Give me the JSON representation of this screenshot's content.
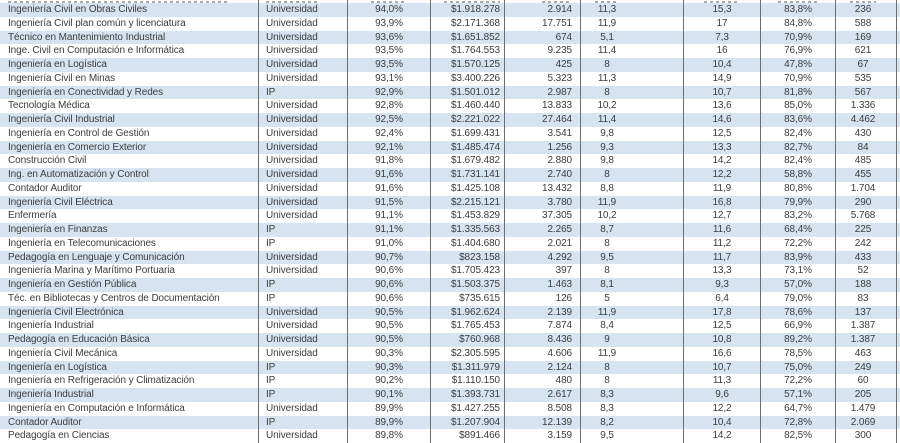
{
  "colors": {
    "row_stripe": "#d6e4f1",
    "grid_border": "#6d6d6d",
    "text": "#3d3d3d",
    "background": "#ffffff"
  },
  "chart_data": {
    "type": "table",
    "title": "",
    "column_headers_visible": false,
    "column_keys": [
      "career",
      "institution",
      "percent_a",
      "income",
      "count_a",
      "value_a",
      "value_b",
      "percent_b",
      "count_b"
    ],
    "rows": [
      [
        "Ingeniería Civil en Obras Civiles",
        "Universidad",
        "94,0%",
        "$1.918.278",
        "2.914",
        "11,3",
        "15,3",
        "83,8%",
        "236"
      ],
      [
        "Ingeniería Civil plan común y licenciatura",
        "Universidad",
        "93,9%",
        "$2.171.368",
        "17.751",
        "11,9",
        "17",
        "84,8%",
        "588"
      ],
      [
        "Técnico en Mantenimiento Industrial",
        "Universidad",
        "93,6%",
        "$1.651.852",
        "674",
        "5,1",
        "7,3",
        "70,9%",
        "169"
      ],
      [
        "Inge. Civil en Computación e Informática",
        "Universidad",
        "93,5%",
        "$1.764.553",
        "9.235",
        "11,4",
        "16",
        "76,9%",
        "621"
      ],
      [
        "Ingeniería en Logística",
        "Universidad",
        "93,5%",
        "$1.570.125",
        "425",
        "8",
        "10,4",
        "47,8%",
        "67"
      ],
      [
        "Ingeniería Civil en Minas",
        "Universidad",
        "93,1%",
        "$3.400.226",
        "5.323",
        "11,3",
        "14,9",
        "70,9%",
        "535"
      ],
      [
        "Ingeniería en Conectividad y Redes",
        "IP",
        "92,9%",
        "$1.501.012",
        "2.987",
        "8",
        "10,7",
        "81,8%",
        "567"
      ],
      [
        "Tecnología Médica",
        "Universidad",
        "92,8%",
        "$1.460.440",
        "13.833",
        "10,2",
        "13,6",
        "85,0%",
        "1.336"
      ],
      [
        "Ingeniería Civil Industrial",
        "Universidad",
        "92,5%",
        "$2.221.022",
        "27.464",
        "11,4",
        "14,6",
        "83,6%",
        "4.462"
      ],
      [
        "Ingeniería en Control de Gestión",
        "Universidad",
        "92,4%",
        "$1.699.431",
        "3.541",
        "9,8",
        "12,5",
        "82,4%",
        "430"
      ],
      [
        "Ingeniería en Comercio Exterior",
        "Universidad",
        "92,1%",
        "$1.485.474",
        "1.256",
        "9,3",
        "13,3",
        "82,7%",
        "84"
      ],
      [
        "Construcción Civil",
        "Universidad",
        "91,8%",
        "$1.679.482",
        "2.880",
        "9,8",
        "14,2",
        "82,4%",
        "485"
      ],
      [
        "Ing. en Automatización y Control",
        "Universidad",
        "91,6%",
        "$1.731.141",
        "2.740",
        "8",
        "12,2",
        "58,8%",
        "455"
      ],
      [
        "Contador Auditor",
        "Universidad",
        "91,6%",
        "$1.425.108",
        "13.432",
        "8,8",
        "11,9",
        "80,8%",
        "1.704"
      ],
      [
        "Ingeniería Civil Eléctrica",
        "Universidad",
        "91,5%",
        "$2.215.121",
        "3.780",
        "11,9",
        "16,8",
        "79,9%",
        "290"
      ],
      [
        "Enfermería",
        "Universidad",
        "91,1%",
        "$1.453.829",
        "37.305",
        "10,2",
        "12,7",
        "83,2%",
        "5.768"
      ],
      [
        "Ingeniería en Finanzas",
        "IP",
        "91,1%",
        "$1.335.563",
        "2.265",
        "8,7",
        "11,6",
        "68,4%",
        "225"
      ],
      [
        "Ingeniería en Telecomunicaciones",
        "IP",
        "91,0%",
        "$1.404.680",
        "2.021",
        "8",
        "11,2",
        "72,2%",
        "242"
      ],
      [
        "Pedagogía en Lenguaje y Comunicación",
        "Universidad",
        "90,7%",
        "$823.158",
        "4.292",
        "9,5",
        "11,7",
        "83,9%",
        "433"
      ],
      [
        "Ingeniería Marina y Marítimo Portuaria",
        "Universidad",
        "90,6%",
        "$1.705.423",
        "397",
        "8",
        "13,3",
        "73,1%",
        "52"
      ],
      [
        "Ingeniería en Gestión Pública",
        "IP",
        "90,6%",
        "$1.503.375",
        "1.463",
        "8,1",
        "9,3",
        "57,0%",
        "188"
      ],
      [
        "Téc. en Bibliotecas y Centros de Documentación",
        "IP",
        "90,6%",
        "$735.615",
        "126",
        "5",
        "6,4",
        "79,0%",
        "83"
      ],
      [
        "Ingeniería Civil Electrónica",
        "Universidad",
        "90,5%",
        "$1.962.624",
        "2.139",
        "11,9",
        "17,8",
        "78,6%",
        "137"
      ],
      [
        "Ingeniería Industrial",
        "Universidad",
        "90,5%",
        "$1.765.453",
        "7.874",
        "8,4",
        "12,5",
        "66,9%",
        "1.387"
      ],
      [
        "Pedagogía en Educación Básica",
        "Universidad",
        "90,5%",
        "$760.968",
        "8.436",
        "9",
        "10,8",
        "89,2%",
        "1.387"
      ],
      [
        "Ingeniería Civil Mecánica",
        "Universidad",
        "90,3%",
        "$2.305.595",
        "4.606",
        "11,9",
        "16,6",
        "78,5%",
        "463"
      ],
      [
        "Ingeniería en Logística",
        "IP",
        "90,3%",
        "$1.311.979",
        "2.124",
        "8",
        "10,7",
        "75,0%",
        "249"
      ],
      [
        "Ingeniería en Refrigeración y Climatización",
        "IP",
        "90,2%",
        "$1.110.150",
        "480",
        "8",
        "11,3",
        "72,2%",
        "60"
      ],
      [
        "Ingeniería Industrial",
        "IP",
        "90,1%",
        "$1.393.731",
        "2.617",
        "8,3",
        "9,6",
        "57,1%",
        "205"
      ],
      [
        "Ingeniería en Computación e Informática",
        "Universidad",
        "89,9%",
        "$1.427.255",
        "8.508",
        "8,3",
        "12,2",
        "64,7%",
        "1.479"
      ],
      [
        "Contador Auditor",
        "IP",
        "89,9%",
        "$1.207.904",
        "12.139",
        "8,2",
        "10,4",
        "72,8%",
        "2.069"
      ],
      [
        "Pedagogía en Ciencias",
        "Universidad",
        "89,8%",
        "$891.466",
        "3.159",
        "9,5",
        "14,2",
        "82,5%",
        "300"
      ]
    ]
  }
}
